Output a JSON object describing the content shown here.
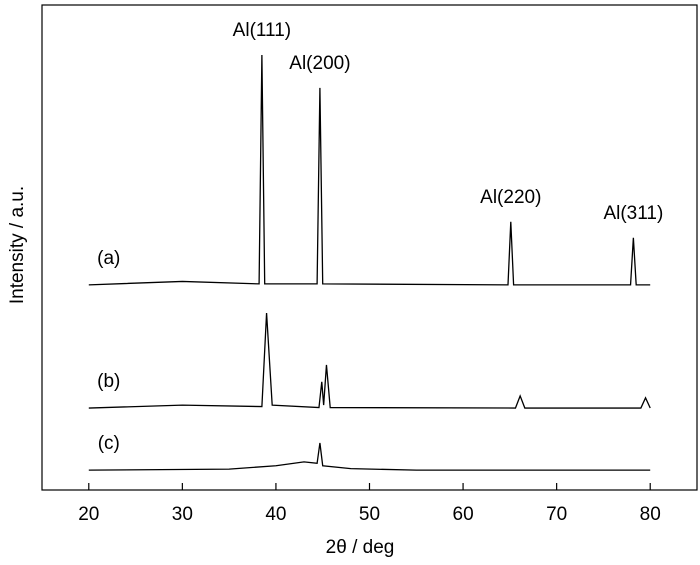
{
  "chart_data": {
    "type": "line",
    "xlabel": "2θ / deg",
    "ylabel": "Intensity / a.u.",
    "xlim": [
      15,
      85
    ],
    "xticks": [
      20,
      30,
      40,
      50,
      60,
      70,
      80
    ],
    "ylim": [
      0,
      100
    ],
    "series": [
      {
        "name": "(a)",
        "color": "#000000",
        "x": [
          20,
          30,
          38.2,
          38.5,
          38.8,
          44.4,
          44.7,
          45.0,
          64.8,
          65.1,
          65.4,
          77.9,
          78.2,
          78.5,
          80
        ],
        "values": [
          42.3,
          43.0,
          42.5,
          89.7,
          42.5,
          42.5,
          82.9,
          42.5,
          42.3,
          55.3,
          42.3,
          42.3,
          52.0,
          42.3,
          42.3
        ]
      },
      {
        "name": "(b)",
        "color": "#000000",
        "x": [
          20,
          30,
          38.5,
          39.0,
          39.6,
          44.6,
          44.9,
          45.1,
          45.4,
          45.8,
          65.6,
          66.1,
          66.6,
          79.0,
          79.5,
          80
        ],
        "values": [
          16.9,
          17.5,
          17.2,
          36.5,
          17.5,
          17.0,
          22.3,
          17.5,
          25.8,
          17.0,
          16.9,
          19.4,
          16.9,
          16.9,
          19.0,
          16.9
        ]
      },
      {
        "name": "(c)",
        "color": "#000000",
        "x": [
          20,
          35,
          40,
          43,
          44.4,
          44.7,
          45.0,
          48,
          55,
          80
        ],
        "values": [
          4.1,
          4.3,
          5.0,
          5.8,
          5.5,
          9.7,
          5.0,
          4.4,
          4.1,
          4.1
        ]
      }
    ],
    "annotations": [
      {
        "text": "Al(111)",
        "x": 38.5
      },
      {
        "text": "Al(200)",
        "x": 44.7
      },
      {
        "text": "Al(220)",
        "x": 65.1
      },
      {
        "text": "Al(311)",
        "x": 78.2
      }
    ]
  }
}
